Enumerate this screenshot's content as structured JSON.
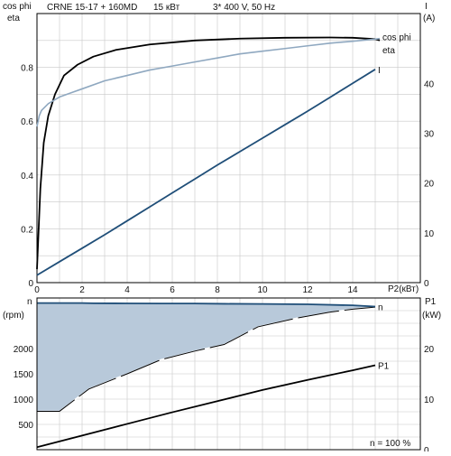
{
  "header": {
    "model": "CRNE 15-17 + 160MD",
    "power": "15 кВт",
    "supply": "3* 400 V, 50 Hz"
  },
  "colors": {
    "eta": "#000000",
    "cos_phi": "#8fa8c0",
    "current": "#1f4e78",
    "speed_line": "#1f4e78",
    "speed_fill": "#b8c9da",
    "p1": "#000000",
    "grid": "#c8c8c8"
  },
  "chart_data": [
    {
      "type": "line",
      "x_label": "P2(кВт)",
      "xlim": [
        0,
        17
      ],
      "x_ticks": [
        0,
        2,
        4,
        6,
        8,
        10,
        12,
        14
      ],
      "grid": true,
      "left_axis": {
        "labels": [
          "cos phi",
          "eta"
        ],
        "ylim": [
          0,
          1.0
        ],
        "ticks": [
          0,
          0.2,
          0.4,
          0.6,
          0.8
        ]
      },
      "right_axis": {
        "labels": [
          "I",
          "(A)"
        ],
        "ylim": [
          0,
          54
        ],
        "ticks": [
          0,
          10,
          20,
          30,
          40
        ]
      },
      "series": [
        {
          "name": "eta",
          "axis": "left",
          "color": "#000000",
          "x": [
            0.0,
            0.15,
            0.3,
            0.5,
            0.8,
            1.2,
            1.8,
            2.5,
            3.5,
            5,
            7,
            9,
            11,
            13,
            14,
            15,
            15.2
          ],
          "y": [
            0.05,
            0.35,
            0.52,
            0.62,
            0.7,
            0.77,
            0.81,
            0.84,
            0.865,
            0.885,
            0.9,
            0.907,
            0.91,
            0.911,
            0.91,
            0.905,
            0.9
          ]
        },
        {
          "name": "cos phi",
          "axis": "left",
          "color": "#8fa8c0",
          "x": [
            0.0,
            0.1,
            0.2,
            0.5,
            1.0,
            1.5,
            2,
            3,
            4,
            5,
            6,
            7,
            8,
            9,
            10,
            11,
            12,
            13,
            14,
            15,
            15.2
          ],
          "y": [
            0.58,
            0.62,
            0.64,
            0.665,
            0.69,
            0.705,
            0.72,
            0.75,
            0.77,
            0.79,
            0.805,
            0.82,
            0.835,
            0.85,
            0.86,
            0.87,
            0.88,
            0.89,
            0.897,
            0.905,
            0.907
          ]
        },
        {
          "name": "I",
          "axis": "right",
          "color": "#1f4e78",
          "x": [
            0,
            1,
            2,
            3,
            4,
            5,
            6,
            7,
            8,
            9,
            10,
            11,
            12,
            13,
            14,
            15
          ],
          "y": [
            1.5,
            4.2,
            6.9,
            9.6,
            12.4,
            15.2,
            18.0,
            20.8,
            23.6,
            26.3,
            29.0,
            31.7,
            34.4,
            37.2,
            40.0,
            42.8
          ]
        }
      ]
    },
    {
      "type": "area",
      "xlim": [
        0,
        17
      ],
      "grid": true,
      "left_axis": {
        "labels": [
          "n",
          "(rpm)"
        ],
        "ylim": [
          0,
          3000
        ],
        "ticks": [
          500,
          1000,
          1500,
          2000
        ]
      },
      "right_axis": {
        "labels": [
          "P1",
          "(kW)"
        ],
        "ylim": [
          0,
          30
        ],
        "ticks": [
          0,
          10,
          20
        ]
      },
      "annotation": "n   = 100 %",
      "series": [
        {
          "name": "n",
          "axis": "left",
          "color": "#1f4e78",
          "fill": "#b8c9da",
          "x": [
            0,
            0.1,
            1.0,
            2,
            2.5,
            4,
            5.5,
            7,
            8.3,
            10,
            12,
            14,
            15
          ],
          "y": [
            2900,
            2900,
            2900,
            2900,
            2895,
            2893,
            2890,
            2890,
            2885,
            2882,
            2875,
            2855,
            2830
          ],
          "lower_x": [
            0,
            1.0,
            2.3,
            4,
            5.5,
            7,
            8.3,
            9.8,
            11.5,
            13,
            14,
            15
          ],
          "lower_y": [
            760,
            760,
            1200,
            1500,
            1780,
            1950,
            2080,
            2430,
            2600,
            2720,
            2780,
            2820
          ]
        },
        {
          "name": "P1",
          "axis": "right",
          "color": "#000000",
          "x": [
            0,
            2,
            4,
            6,
            8,
            10,
            12,
            14,
            15
          ],
          "y": [
            0.5,
            2.8,
            5.1,
            7.4,
            9.6,
            11.8,
            13.8,
            15.7,
            16.7
          ]
        }
      ]
    }
  ]
}
